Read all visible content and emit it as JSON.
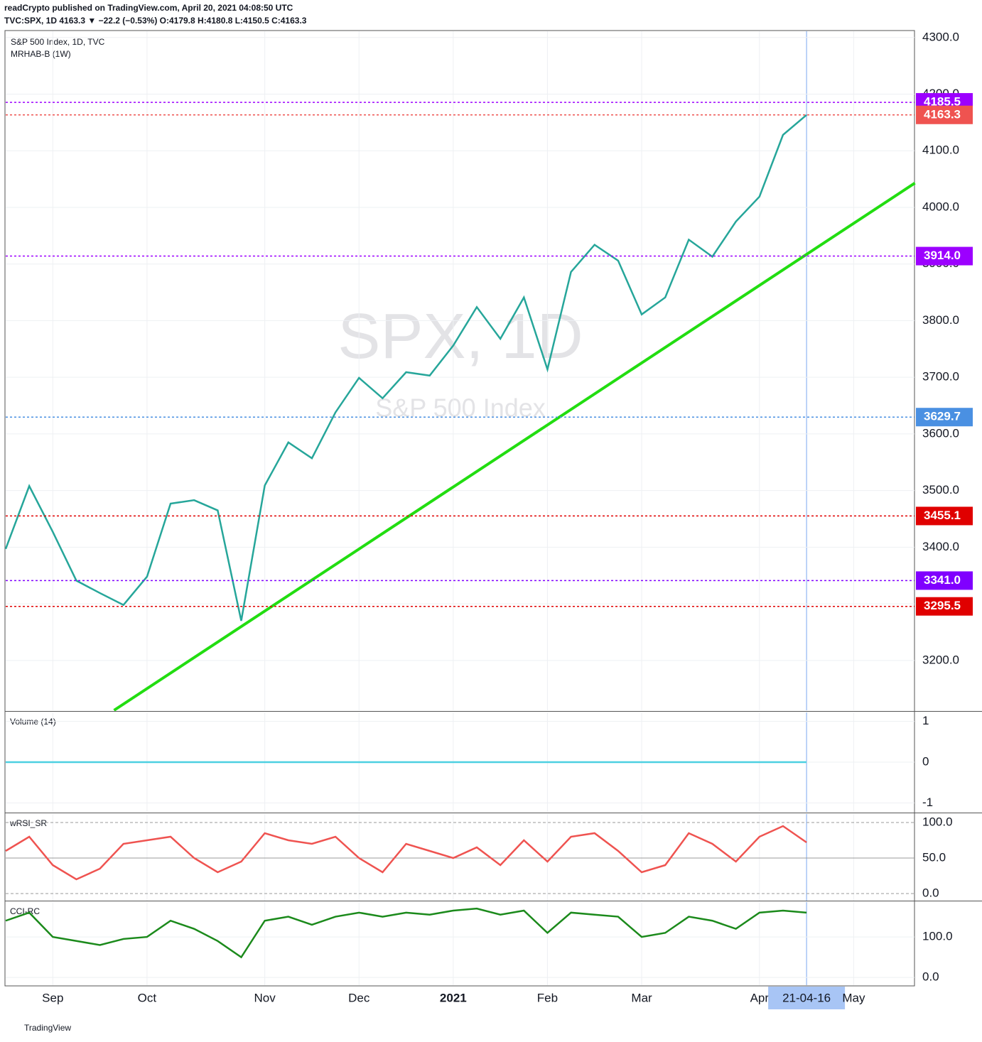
{
  "header": {
    "publisher": "readCrypto published on TradingView.com, April 20, 2021 04:08:50 UTC",
    "symbol_line": "TVC:SPX, 1D 4163.3 ▼ −22.2 (−0.53%) O:4179.8 H:4180.8 L:4150.5 C:4163.3",
    "footer": "TradingView"
  },
  "chart_data": [
    {
      "type": "line",
      "title": "S&P 500 Index, 1D, TVC",
      "subtitle": "MRHAB-B (1W)",
      "watermark": "SPX, 1D",
      "watermark_sub": "S&P 500 Index",
      "color": "#26a69a",
      "categories": [
        null,
        null,
        "Sep",
        null,
        null,
        null,
        "Oct",
        null,
        null,
        null,
        null,
        "Nov",
        null,
        null,
        null,
        "Dec",
        null,
        null,
        null,
        "2021",
        null,
        null,
        null,
        "Feb",
        null,
        null,
        null,
        "Mar",
        null,
        null,
        null,
        null,
        "Apr",
        null,
        "21-04-16",
        null,
        "May",
        null
      ],
      "values": [
        3397,
        3508,
        3427,
        3341,
        3319,
        3298,
        3348,
        3477,
        3483,
        3465,
        3270,
        3509,
        3585,
        3557,
        3638,
        3699,
        3663,
        3709,
        3703,
        3756,
        3824,
        3768,
        3841,
        3714,
        3886,
        3934,
        3906,
        3811,
        3841,
        3943,
        3913,
        3975,
        4019,
        4128,
        4163.3,
        null,
        null,
        null
      ],
      "ylim": [
        3112,
        4311
      ],
      "yticks": [
        {
          "value": 3200,
          "label": "3200.0"
        },
        {
          "value": 3300,
          "label": "3300.0"
        },
        {
          "value": 3400,
          "label": "3400.0"
        },
        {
          "value": 3500,
          "label": "3500.0"
        },
        {
          "value": 3600,
          "label": "3600.0"
        },
        {
          "value": 3700,
          "label": "3700.0"
        },
        {
          "value": 3800,
          "label": "3800.0"
        },
        {
          "value": 3900,
          "label": "3900.0"
        },
        {
          "value": 4000,
          "label": "4000.0"
        },
        {
          "value": 4100,
          "label": "4100.0"
        },
        {
          "value": 4200,
          "label": "4200.0"
        },
        {
          "value": 4300,
          "label": "4300.0"
        }
      ],
      "levels": [
        {
          "value": 4185.5,
          "label": "4185.5",
          "color": "#9c00ff"
        },
        {
          "value": 4163.3,
          "label": "4163.3",
          "color": "#ef5350"
        },
        {
          "value": 3914,
          "label": "3914.0",
          "color": "#9c00ff"
        },
        {
          "value": 3629.7,
          "label": "3629.7",
          "color": "#4a90e2"
        },
        {
          "value": 3455.1,
          "label": "3455.1",
          "color": "#e00000"
        },
        {
          "value": 3341,
          "label": "3341.0",
          "color": "#8000ff"
        },
        {
          "value": 3295.5,
          "label": "3295.5",
          "color": "#e00000"
        }
      ],
      "trendline": {
        "x": [
          4.6,
          38.6
        ],
        "values": [
          3112,
          4043
        ],
        "color": "#22dd11"
      },
      "grid": true
    },
    {
      "type": "line",
      "title": "Volume (14)",
      "color": "#4dd0e1",
      "values": [
        0,
        0,
        0,
        0,
        0,
        0,
        0,
        0,
        0,
        0,
        0,
        0,
        0,
        0,
        0,
        0,
        0,
        0,
        0,
        0,
        0,
        0,
        0,
        0,
        0,
        0,
        0,
        0,
        0,
        0,
        0,
        0,
        0,
        0,
        0
      ],
      "ylim": [
        -1.22,
        1.22
      ],
      "yticks": [
        1,
        0,
        -1
      ]
    },
    {
      "type": "line",
      "title": "wRSI_SR",
      "color": "#ef5350",
      "values": [
        60,
        80,
        40,
        20,
        35,
        70,
        75,
        80,
        50,
        30,
        45,
        85,
        75,
        70,
        80,
        50,
        30,
        70,
        60,
        50,
        65,
        40,
        75,
        45,
        80,
        85,
        60,
        30,
        40,
        85,
        70,
        45,
        80,
        95,
        72
      ],
      "ylim": [
        -10,
        112
      ],
      "yticks": [
        {
          "value": 100,
          "label": "100.0"
        },
        {
          "value": 50,
          "label": "50.0"
        },
        {
          "value": 0,
          "label": "0.0"
        }
      ]
    },
    {
      "type": "line",
      "title": "CCI-RC",
      "color": "#1b8a1b",
      "values": [
        140,
        160,
        100,
        90,
        80,
        95,
        100,
        140,
        120,
        90,
        50,
        140,
        150,
        130,
        150,
        160,
        150,
        160,
        155,
        165,
        170,
        155,
        165,
        110,
        160,
        155,
        150,
        100,
        110,
        150,
        140,
        120,
        160,
        165,
        160
      ],
      "ylim": [
        -19,
        186
      ],
      "yticks": [
        {
          "value": 100,
          "label": "100.0"
        },
        {
          "value": 0,
          "label": "0.0"
        }
      ]
    }
  ]
}
